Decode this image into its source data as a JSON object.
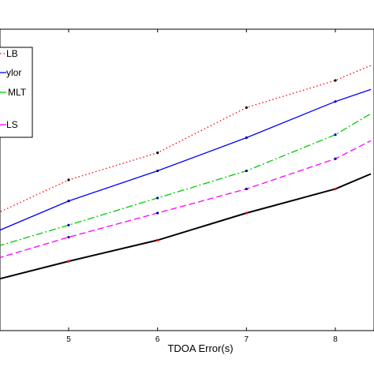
{
  "chart_data": {
    "type": "line",
    "title": "",
    "xlabel": "TDOA Error(s)",
    "ylabel": "",
    "xlim": [
      4.2,
      8.4
    ],
    "ylim": [
      0,
      1
    ],
    "xticks": [
      5,
      6,
      7,
      8
    ],
    "grid": false,
    "legend": {
      "placement": "top-left",
      "entries": [
        "LB",
        "ylor",
        "MLT",
        "LS"
      ]
    },
    "series": [
      {
        "name": "LB",
        "color": "#ff0000",
        "style": "dotted",
        "x": [
          4.2,
          5,
          6,
          7,
          8,
          8.4
        ],
        "y": [
          0.39,
          0.5,
          0.59,
          0.74,
          0.83,
          0.88
        ]
      },
      {
        "name": "ylor",
        "color": "#0000ff",
        "style": "solid",
        "x": [
          4.2,
          5,
          6,
          7,
          8,
          8.4
        ],
        "y": [
          0.33,
          0.43,
          0.53,
          0.64,
          0.76,
          0.8
        ]
      },
      {
        "name": "MLT",
        "color": "#00cc00",
        "style": "dashdot",
        "x": [
          4.2,
          5,
          6,
          7,
          8,
          8.4
        ],
        "y": [
          0.28,
          0.35,
          0.44,
          0.53,
          0.65,
          0.72
        ]
      },
      {
        "name": "LS",
        "color": "#ff00ff",
        "style": "dashed",
        "x": [
          4.2,
          5,
          6,
          7,
          8,
          8.4
        ],
        "y": [
          0.24,
          0.31,
          0.39,
          0.47,
          0.57,
          0.63
        ]
      },
      {
        "name": "",
        "color": "#000000",
        "style": "solid-thick",
        "x": [
          4.2,
          5,
          6,
          7,
          8,
          8.4
        ],
        "y": [
          0.17,
          0.23,
          0.3,
          0.39,
          0.47,
          0.52
        ]
      }
    ]
  }
}
